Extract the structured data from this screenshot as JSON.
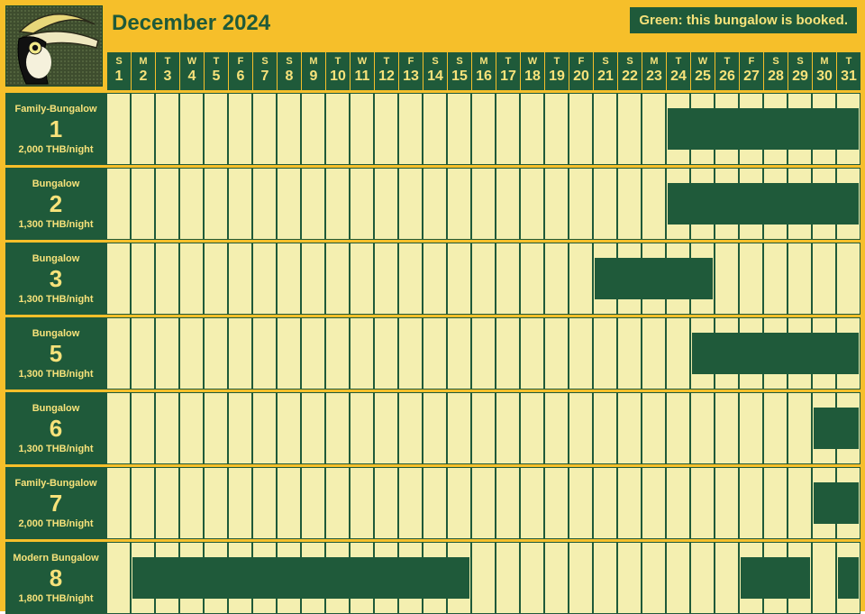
{
  "colors": {
    "page_bg": "#f6bf2a",
    "dark_green": "#1f5a3a",
    "dark_green2": "#1a4a30",
    "cream": "#f4efb0",
    "yellow_text": "#f7e27a",
    "grid_border": "#1f5a3a"
  },
  "title": "December 2024",
  "legend_text": "Green: this bungalow is booked.",
  "days": [
    {
      "wd": "S",
      "n": "1"
    },
    {
      "wd": "M",
      "n": "2"
    },
    {
      "wd": "T",
      "n": "3"
    },
    {
      "wd": "W",
      "n": "4"
    },
    {
      "wd": "T",
      "n": "5"
    },
    {
      "wd": "F",
      "n": "6"
    },
    {
      "wd": "S",
      "n": "7"
    },
    {
      "wd": "S",
      "n": "8"
    },
    {
      "wd": "M",
      "n": "9"
    },
    {
      "wd": "T",
      "n": "10"
    },
    {
      "wd": "W",
      "n": "11"
    },
    {
      "wd": "T",
      "n": "12"
    },
    {
      "wd": "F",
      "n": "13"
    },
    {
      "wd": "S",
      "n": "14"
    },
    {
      "wd": "S",
      "n": "15"
    },
    {
      "wd": "M",
      "n": "16"
    },
    {
      "wd": "T",
      "n": "17"
    },
    {
      "wd": "W",
      "n": "18"
    },
    {
      "wd": "T",
      "n": "19"
    },
    {
      "wd": "F",
      "n": "20"
    },
    {
      "wd": "S",
      "n": "21"
    },
    {
      "wd": "S",
      "n": "22"
    },
    {
      "wd": "M",
      "n": "23"
    },
    {
      "wd": "T",
      "n": "24"
    },
    {
      "wd": "W",
      "n": "25"
    },
    {
      "wd": "T",
      "n": "26"
    },
    {
      "wd": "F",
      "n": "27"
    },
    {
      "wd": "S",
      "n": "28"
    },
    {
      "wd": "S",
      "n": "29"
    },
    {
      "wd": "M",
      "n": "30"
    },
    {
      "wd": "T",
      "n": "31"
    }
  ],
  "rooms": [
    {
      "type": "Family-Bungalow",
      "num": "1",
      "price": "2,000 THB/night",
      "booked": [
        0,
        0,
        0,
        0,
        0,
        0,
        0,
        0,
        0,
        0,
        0,
        0,
        0,
        0,
        0,
        0,
        0,
        0,
        0,
        0,
        0,
        0,
        0,
        1,
        1,
        1,
        1,
        1,
        1,
        1,
        1
      ]
    },
    {
      "type": "Bungalow",
      "num": "2",
      "price": "1,300 THB/night",
      "booked": [
        0,
        0,
        0,
        0,
        0,
        0,
        0,
        0,
        0,
        0,
        0,
        0,
        0,
        0,
        0,
        0,
        0,
        0,
        0,
        0,
        0,
        0,
        0,
        1,
        1,
        1,
        1,
        1,
        1,
        1,
        1
      ]
    },
    {
      "type": "Bungalow",
      "num": "3",
      "price": "1,300 THB/night",
      "booked": [
        0,
        0,
        0,
        0,
        0,
        0,
        0,
        0,
        0,
        0,
        0,
        0,
        0,
        0,
        0,
        0,
        0,
        0,
        0,
        0,
        1,
        1,
        1,
        1,
        1,
        0,
        0,
        0,
        0,
        0,
        0
      ]
    },
    {
      "type": "Bungalow",
      "num": "5",
      "price": "1,300 THB/night",
      "booked": [
        0,
        0,
        0,
        0,
        0,
        0,
        0,
        0,
        0,
        0,
        0,
        0,
        0,
        0,
        0,
        0,
        0,
        0,
        0,
        0,
        0,
        0,
        0,
        0,
        1,
        1,
        1,
        1,
        1,
        1,
        1
      ]
    },
    {
      "type": "Bungalow",
      "num": "6",
      "price": "1,300 THB/night",
      "booked": [
        0,
        0,
        0,
        0,
        0,
        0,
        0,
        0,
        0,
        0,
        0,
        0,
        0,
        0,
        0,
        0,
        0,
        0,
        0,
        0,
        0,
        0,
        0,
        0,
        0,
        0,
        0,
        0,
        0,
        1,
        1
      ]
    },
    {
      "type": "Family-Bungalow",
      "num": "7",
      "price": "2,000 THB/night",
      "booked": [
        0,
        0,
        0,
        0,
        0,
        0,
        0,
        0,
        0,
        0,
        0,
        0,
        0,
        0,
        0,
        0,
        0,
        0,
        0,
        0,
        0,
        0,
        0,
        0,
        0,
        0,
        0,
        0,
        0,
        1,
        1
      ]
    },
    {
      "type": "Modern Bungalow",
      "num": "8",
      "price": "1,800 THB/night",
      "booked": [
        0,
        1,
        1,
        1,
        1,
        1,
        1,
        1,
        1,
        1,
        1,
        1,
        1,
        1,
        1,
        0,
        0,
        0,
        0,
        0,
        0,
        0,
        0,
        0,
        0,
        0,
        1,
        1,
        1,
        0,
        1
      ]
    }
  ]
}
